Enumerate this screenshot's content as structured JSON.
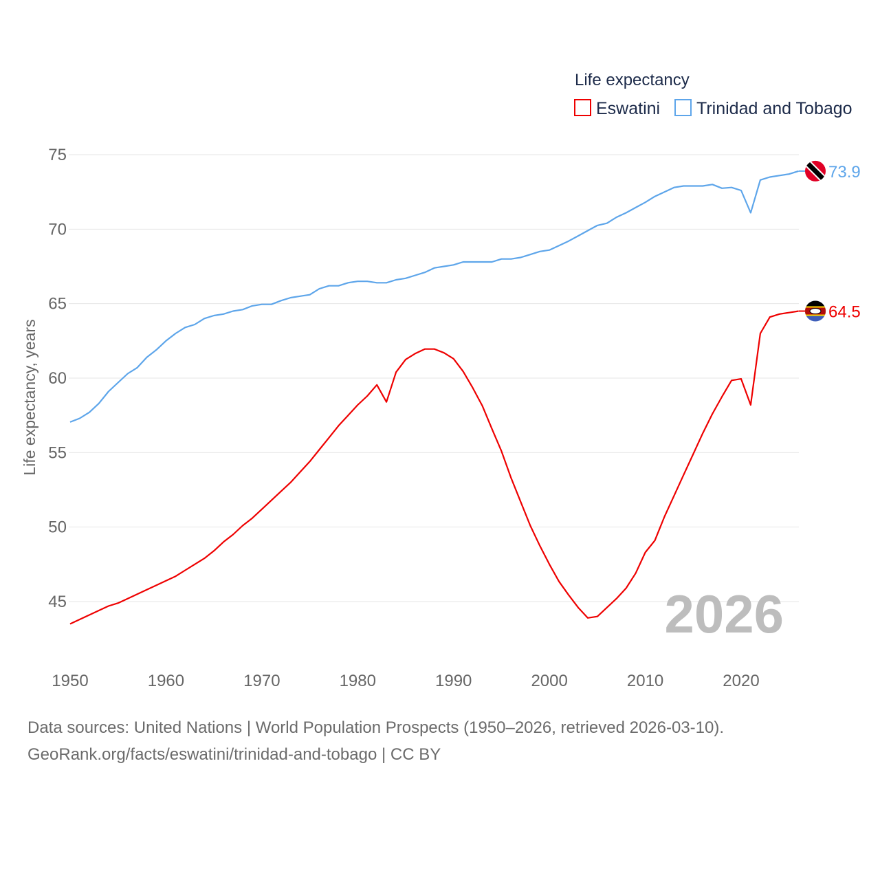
{
  "chart_data": {
    "type": "line",
    "title": "Life expectancy",
    "xlabel": "",
    "ylabel": "Life expectancy, years",
    "xlim": [
      1950,
      2026
    ],
    "ylim": [
      42.5,
      76
    ],
    "grid": true,
    "legend_position": "top-right",
    "x_ticks": [
      "1950",
      "1960",
      "1970",
      "1980",
      "1990",
      "2000",
      "2010",
      "2020"
    ],
    "y_ticks": [
      "45",
      "50",
      "55",
      "60",
      "65",
      "70",
      "75"
    ],
    "year_watermark": "2026",
    "x": [
      1950,
      1951,
      1952,
      1953,
      1954,
      1955,
      1956,
      1957,
      1958,
      1959,
      1960,
      1961,
      1962,
      1963,
      1964,
      1965,
      1966,
      1967,
      1968,
      1969,
      1970,
      1971,
      1972,
      1973,
      1974,
      1975,
      1976,
      1977,
      1978,
      1979,
      1980,
      1981,
      1982,
      1983,
      1984,
      1985,
      1986,
      1987,
      1988,
      1989,
      1990,
      1991,
      1992,
      1993,
      1994,
      1995,
      1996,
      1997,
      1998,
      1999,
      2000,
      2001,
      2002,
      2003,
      2004,
      2005,
      2006,
      2007,
      2008,
      2009,
      2010,
      2011,
      2012,
      2013,
      2014,
      2015,
      2016,
      2017,
      2018,
      2019,
      2020,
      2021,
      2022,
      2023,
      2024,
      2025,
      2026
    ],
    "series": [
      {
        "name": "Eswatini",
        "color": "#ee0000",
        "end_label": "64.5",
        "values": [
          43.5,
          43.8,
          44.1,
          44.4,
          44.7,
          44.9,
          45.2,
          45.5,
          45.8,
          46.1,
          46.4,
          46.7,
          47.1,
          47.5,
          47.9,
          48.4,
          49.0,
          49.5,
          50.1,
          50.6,
          51.2,
          51.8,
          52.4,
          53.0,
          53.7,
          54.4,
          55.2,
          56.0,
          56.8,
          57.5,
          58.2,
          58.8,
          59.55,
          58.4,
          60.4,
          61.25,
          61.65,
          61.95,
          61.95,
          61.7,
          61.3,
          60.45,
          59.35,
          58.15,
          56.6,
          55.1,
          53.3,
          51.7,
          50.1,
          48.75,
          47.5,
          46.35,
          45.45,
          44.6,
          43.9,
          44.0,
          44.6,
          45.2,
          45.9,
          46.9,
          48.3,
          49.1,
          50.7,
          52.1,
          53.5,
          54.9,
          56.3,
          57.6,
          58.75,
          59.85,
          59.95,
          58.2,
          63.0,
          64.1,
          64.3,
          64.4,
          64.5
        ]
      },
      {
        "name": "Trinidad and Tobago",
        "color": "#5da5ea",
        "end_label": "73.9",
        "values": [
          57.05,
          57.3,
          57.7,
          58.3,
          59.1,
          59.7,
          60.3,
          60.7,
          61.4,
          61.9,
          62.5,
          63.0,
          63.4,
          63.6,
          64.0,
          64.2,
          64.3,
          64.5,
          64.6,
          64.85,
          64.95,
          64.95,
          65.2,
          65.4,
          65.5,
          65.6,
          66.0,
          66.2,
          66.2,
          66.4,
          66.5,
          66.5,
          66.4,
          66.4,
          66.6,
          66.7,
          66.9,
          67.1,
          67.4,
          67.5,
          67.6,
          67.8,
          67.8,
          67.8,
          67.8,
          68.0,
          68.0,
          68.1,
          68.3,
          68.5,
          68.6,
          68.9,
          69.2,
          69.55,
          69.9,
          70.25,
          70.4,
          70.8,
          71.1,
          71.45,
          71.8,
          72.2,
          72.5,
          72.8,
          72.9,
          72.9,
          72.9,
          73.0,
          72.75,
          72.8,
          72.6,
          71.1,
          73.3,
          73.5,
          73.6,
          73.7,
          73.9
        ]
      }
    ]
  },
  "footer": {
    "line1": "Data sources: United Nations | World Population Prospects (1950–2026, retrieved 2026-03-10).",
    "line2": "GeoRank.org/facts/eswatini/trinidad-and-tobago | CC BY"
  }
}
